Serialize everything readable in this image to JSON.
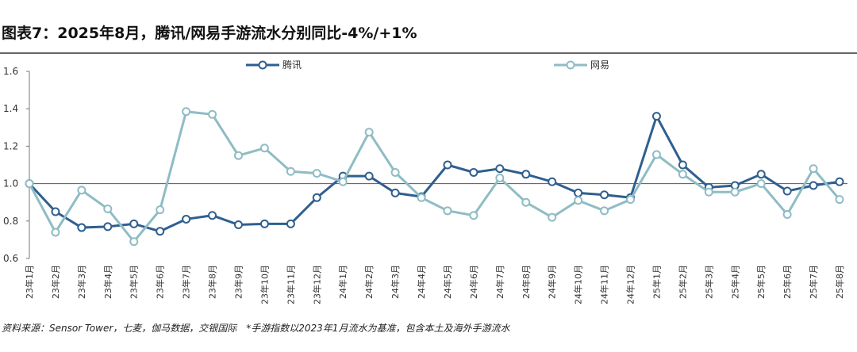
{
  "chart_data": {
    "type": "line",
    "title": "图表7：2025年8月，腾讯/网易手游流水分别同比-4%/+1%",
    "source": "资料来源：Sensor Tower，七麦，伽马数据，交银国际　*手游指数以2023年1月流水为基准，包含本土及海外手游流水",
    "categories": [
      "23年1月",
      "23年2月",
      "23年3月",
      "23年4月",
      "23年5月",
      "23年6月",
      "23年7月",
      "23年8月",
      "23年9月",
      "23年10月",
      "23年11月",
      "23年12月",
      "24年1月",
      "24年2月",
      "24年3月",
      "24年4月",
      "24年5月",
      "24年6月",
      "24年7月",
      "24年8月",
      "24年9月",
      "24年10月",
      "24年11月",
      "24年12月",
      "25年1月",
      "25年2月",
      "25年3月",
      "25年4月",
      "25年5月",
      "25年6月",
      "25年7月",
      "25年8月"
    ],
    "series": [
      {
        "name": "腾讯",
        "color": "#2f5f8f",
        "values": [
          1.0,
          0.85,
          0.765,
          0.77,
          0.785,
          0.745,
          0.81,
          0.83,
          0.78,
          0.785,
          0.785,
          0.925,
          1.04,
          1.04,
          0.95,
          0.93,
          1.1,
          1.06,
          1.08,
          1.05,
          1.01,
          0.95,
          0.94,
          0.925,
          1.36,
          1.1,
          0.98,
          0.99,
          1.05,
          0.96,
          0.99,
          1.01
        ]
      },
      {
        "name": "网易",
        "color": "#8fbcc4",
        "values": [
          1.0,
          0.74,
          0.965,
          0.865,
          0.69,
          0.86,
          1.385,
          1.37,
          1.15,
          1.19,
          1.065,
          1.055,
          1.01,
          1.275,
          1.06,
          0.925,
          0.855,
          0.83,
          1.03,
          0.9,
          0.82,
          0.91,
          0.855,
          0.915,
          1.155,
          1.05,
          0.955,
          0.955,
          1.0,
          0.835,
          1.08,
          0.915
        ]
      }
    ],
    "ylim": [
      0.6,
      1.6
    ],
    "yticks": [
      0.6,
      0.8,
      {
        "value": 1,
        "label": "1.0"
      },
      1.2,
      1.4,
      1.6
    ],
    "axis_crossing": 1,
    "grid": false
  }
}
